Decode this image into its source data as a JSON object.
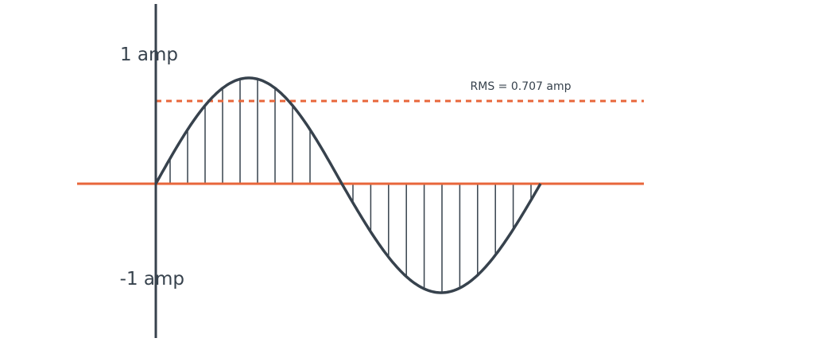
{
  "labels": {
    "top": "1 amp",
    "bottom": "-1 amp",
    "rms": "RMS = 0.707 amp"
  }
}
